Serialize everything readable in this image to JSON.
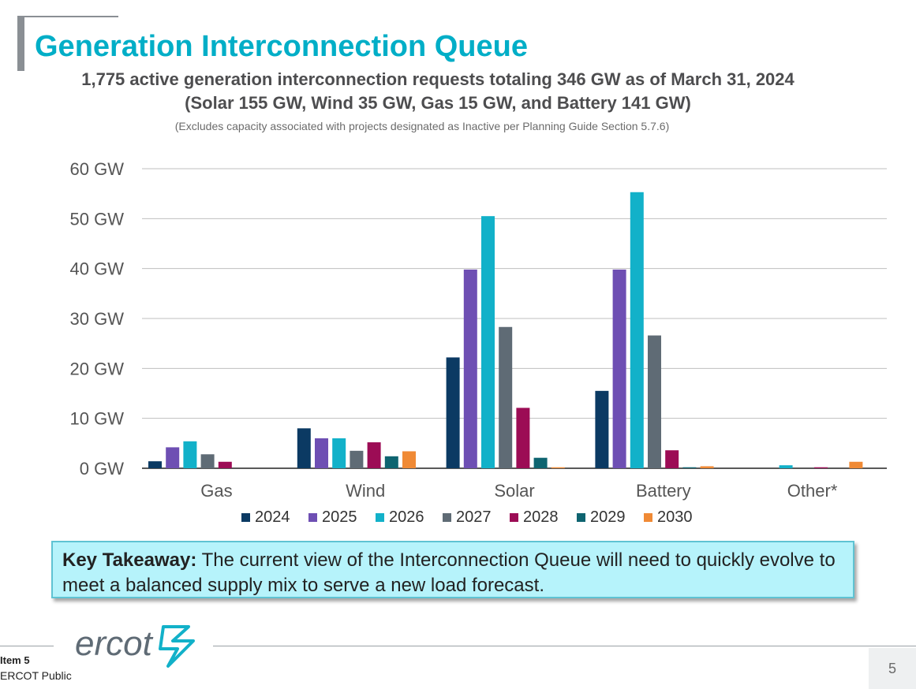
{
  "header": {
    "title": "Generation Interconnection Queue",
    "subtitle_line1": "1,775 active generation interconnection requests totaling 346 GW as of March 31, 2024",
    "subtitle_line2": "(Solar 155 GW, Wind 35 GW, Gas 15 GW, and Battery 141 GW)",
    "note": "(Excludes capacity associated with projects designated as Inactive per Planning Guide Section 5.7.6)"
  },
  "chart_data": {
    "type": "bar",
    "categories": [
      "Gas",
      "Wind",
      "Solar",
      "Battery",
      "Other*"
    ],
    "y_ticks": [
      "0 GW",
      "10 GW",
      "20 GW",
      "30 GW",
      "40 GW",
      "50 GW",
      "60 GW"
    ],
    "ylim": [
      0,
      60
    ],
    "grid": true,
    "legend_position": "bottom",
    "series": [
      {
        "name": "2024",
        "color": "#0b3a63",
        "values": [
          1.4,
          8.0,
          22.2,
          15.5,
          0.0
        ]
      },
      {
        "name": "2025",
        "color": "#6e4fb3",
        "values": [
          4.2,
          6.0,
          39.8,
          39.8,
          0.0
        ]
      },
      {
        "name": "2026",
        "color": "#12b1c9",
        "values": [
          5.4,
          6.0,
          50.5,
          55.3,
          0.6
        ]
      },
      {
        "name": "2027",
        "color": "#5f6b75",
        "values": [
          2.8,
          3.5,
          28.3,
          26.6,
          0.0
        ]
      },
      {
        "name": "2028",
        "color": "#9c0c55",
        "values": [
          1.3,
          5.2,
          12.1,
          3.6,
          0.2
        ]
      },
      {
        "name": "2029",
        "color": "#0e6470",
        "values": [
          0.0,
          2.4,
          2.1,
          0.2,
          0.0
        ]
      },
      {
        "name": "2030",
        "color": "#f08a35",
        "values": [
          0.0,
          3.4,
          0.2,
          0.4,
          1.3
        ]
      }
    ]
  },
  "takeaway": {
    "label": "Key Takeaway:",
    "text": "The current view of the Interconnection Queue will need to quickly evolve to meet a balanced supply mix to serve a new load forecast."
  },
  "footer": {
    "logo_text": "ercot",
    "item": "Item 5",
    "classification": "ERCOT Public",
    "page_number": "5"
  }
}
